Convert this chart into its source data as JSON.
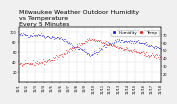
{
  "title": "Milwaukee Weather Outdoor Humidity\nvs Temperature\nEvery 5 Minutes",
  "bg_color": "#f0f0f0",
  "plot_bg": "#ffffff",
  "humidity_color": "#0000ff",
  "temp_color": "#ff0000",
  "legend_humidity": "Humidity",
  "legend_temp": "Temp",
  "ylim_left": [
    0,
    110
  ],
  "ylim_right": [
    10,
    80
  ],
  "yticks_left": [
    20,
    40,
    60,
    80,
    100
  ],
  "yticks_right": [
    20,
    30,
    40,
    50,
    60,
    70
  ],
  "title_fontsize": 4.5,
  "tick_fontsize": 2.5,
  "marker_size": 0.8,
  "legend_fontsize": 3.0
}
